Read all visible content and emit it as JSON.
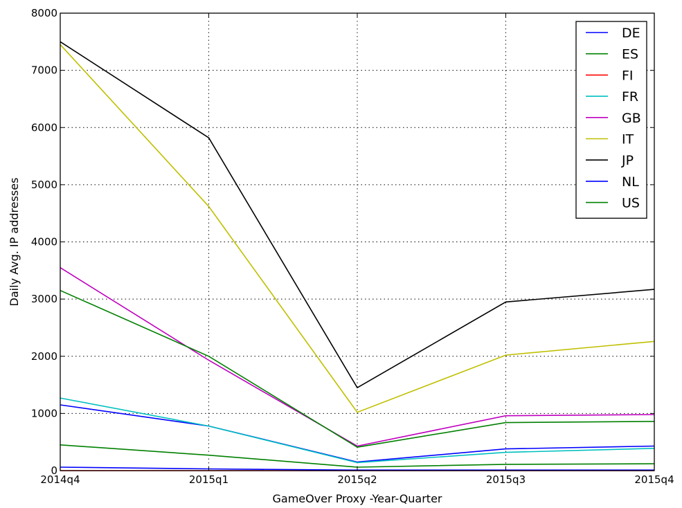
{
  "chart_data": {
    "type": "line",
    "title": "",
    "xlabel": "GameOver Proxy -Year-Quarter",
    "ylabel": "Daily Avg. IP addresses",
    "categories": [
      "2014q4",
      "2015q1",
      "2015q2",
      "2015q3",
      "2015q4"
    ],
    "ylim": [
      0,
      8000
    ],
    "yticks": [
      0,
      1000,
      2000,
      3000,
      4000,
      5000,
      6000,
      7000,
      8000
    ],
    "grid": true,
    "legend_position": "top-right",
    "series": [
      {
        "name": "DE",
        "color": "#0000ff",
        "values": [
          1150,
          780,
          150,
          380,
          430
        ]
      },
      {
        "name": "ES",
        "color": "#008000",
        "values": [
          450,
          270,
          60,
          110,
          120
        ]
      },
      {
        "name": "FI",
        "color": "#ff0000",
        "values": [
          0,
          0,
          0,
          0,
          0
        ]
      },
      {
        "name": "FR",
        "color": "#00bfbf",
        "values": [
          1270,
          780,
          140,
          320,
          390
        ]
      },
      {
        "name": "GB",
        "color": "#bf00bf",
        "values": [
          3550,
          1930,
          430,
          960,
          980
        ]
      },
      {
        "name": "IT",
        "color": "#bfbf00",
        "values": [
          7450,
          4620,
          1020,
          2020,
          2260
        ]
      },
      {
        "name": "JP",
        "color": "#000000",
        "values": [
          7500,
          5820,
          1450,
          2950,
          3170
        ]
      },
      {
        "name": "NL",
        "color": "#0000ff",
        "values": [
          60,
          30,
          10,
          10,
          10
        ]
      },
      {
        "name": "US",
        "color": "#008000",
        "values": [
          3150,
          2000,
          410,
          840,
          860
        ]
      }
    ]
  }
}
